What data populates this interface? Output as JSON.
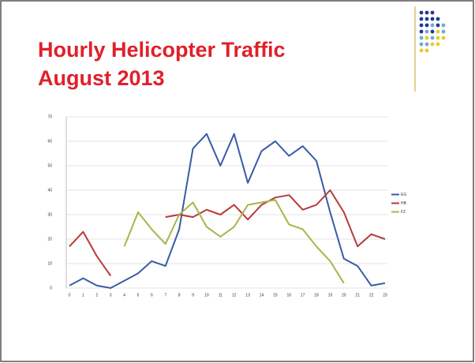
{
  "chart_data": {
    "type": "line",
    "title": "Hourly Helicopter Traffic",
    "subtitle": "August 2013",
    "categories": [
      "0",
      "1",
      "2",
      "3",
      "4",
      "5",
      "6",
      "7",
      "8",
      "9",
      "10",
      "11",
      "12",
      "13",
      "14",
      "15",
      "16",
      "17",
      "18",
      "19",
      "20",
      "21",
      "22",
      "23"
    ],
    "series": [
      {
        "name": "EG",
        "color": "#3a5ba8",
        "values": [
          1,
          4,
          1,
          0,
          3,
          6,
          11,
          9,
          24,
          57,
          63,
          50,
          63,
          43,
          56,
          60,
          54,
          58,
          52,
          31,
          12,
          9,
          1,
          2
        ]
      },
      {
        "name": "HB",
        "color": "#b83a3a",
        "values": [
          17,
          23,
          13,
          5,
          null,
          null,
          null,
          29,
          30,
          29,
          32,
          30,
          34,
          28,
          34,
          37,
          38,
          32,
          34,
          40,
          31,
          17,
          22,
          20
        ]
      },
      {
        "name": "FZ",
        "color": "#a8b54a",
        "values": [
          null,
          null,
          null,
          null,
          17,
          31,
          24,
          18,
          30,
          35,
          25,
          21,
          25,
          34,
          35,
          36,
          26,
          24,
          17,
          11,
          2,
          null,
          null,
          null
        ]
      }
    ],
    "ylim": [
      0,
      70
    ],
    "yticks": [
      0,
      10,
      20,
      30,
      40,
      50,
      60,
      70
    ],
    "grid": true,
    "legend": "right"
  }
}
